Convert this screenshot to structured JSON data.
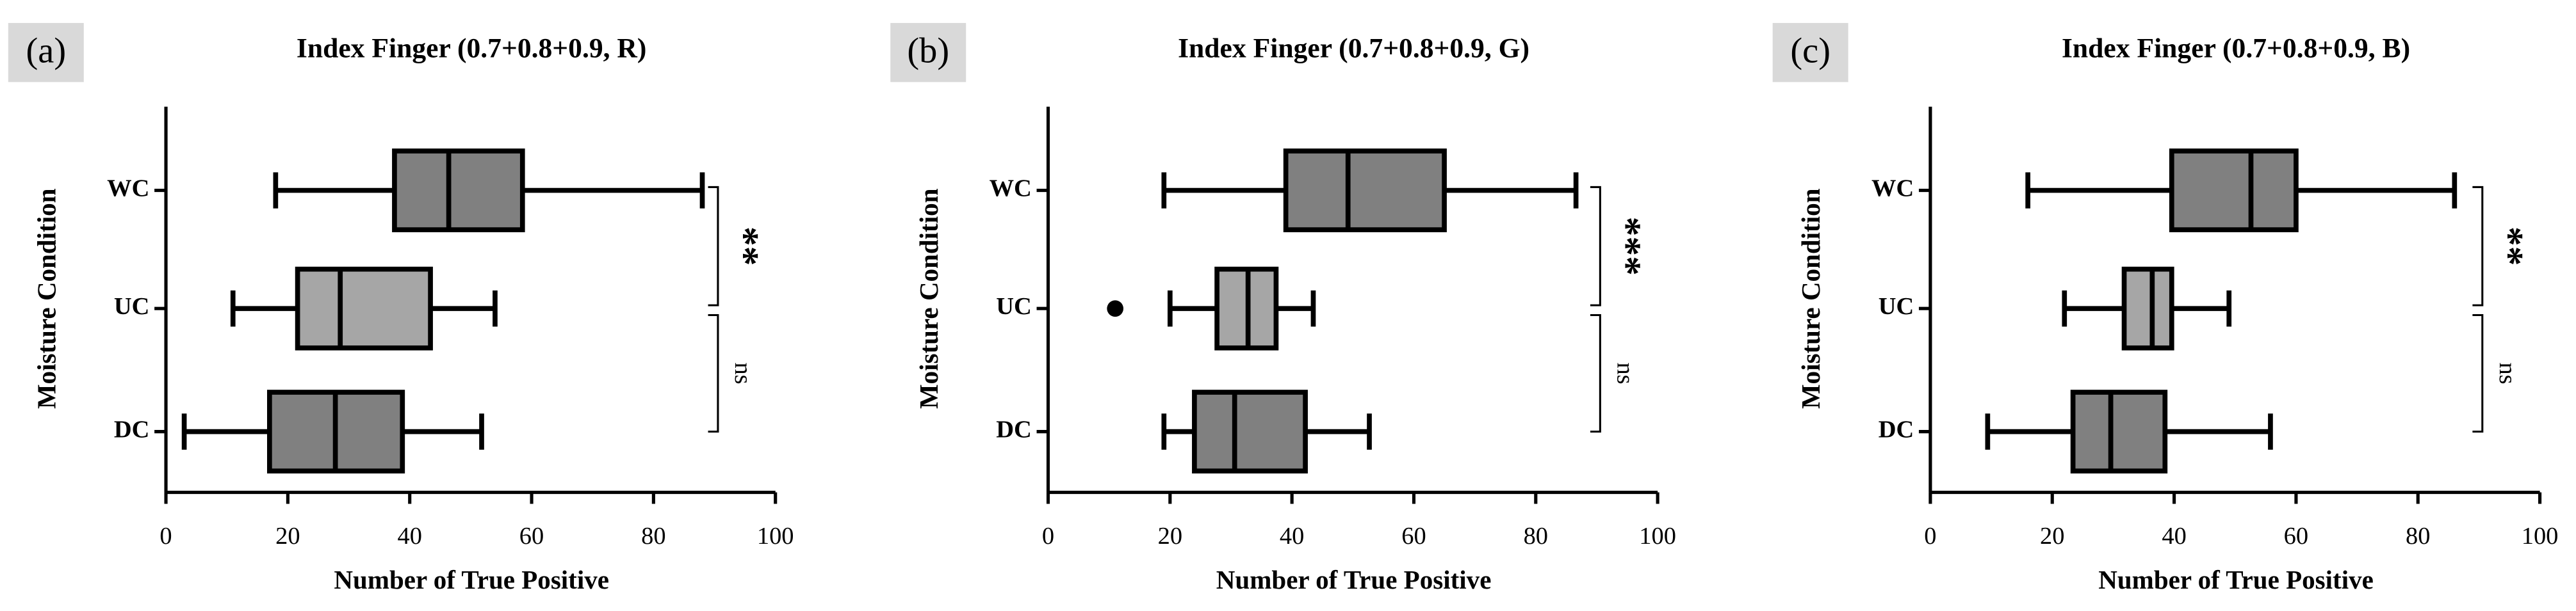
{
  "chart_data": [
    {
      "type": "box",
      "panel_label": "(a)",
      "title": "Index Finger (0.7+0.8+0.9, R)",
      "xlabel": "Number of True  Positive",
      "ylabel": "Moisture Condition",
      "categories": [
        "WC",
        "UC",
        "DC"
      ],
      "min": [
        18,
        11,
        3
      ],
      "q1": [
        37.5,
        21.6,
        17
      ],
      "median": [
        46.4,
        28.6,
        27.8
      ],
      "q3": [
        58.5,
        43.4,
        38.8
      ],
      "max": [
        88,
        54,
        51.8
      ],
      "colors": [
        "#808080",
        "#a6a6a6",
        "#808080"
      ],
      "xlim": [
        0,
        100
      ],
      "xticks": [
        0,
        20,
        40,
        60,
        80,
        100
      ],
      "significance": [
        "**",
        "ns"
      ]
    },
    {
      "type": "box",
      "panel_label": "(b)",
      "title": "Index Finger (0.7+0.8+0.9, G)",
      "xlabel": "Number of True  Positive",
      "ylabel": "Moisture Condition",
      "categories": [
        "WC",
        "UC",
        "DC"
      ],
      "min": [
        19,
        20,
        19
      ],
      "q1": [
        39,
        27.7,
        24
      ],
      "median": [
        49.2,
        32.8,
        30.6
      ],
      "q3": [
        65,
        37.4,
        42.2
      ],
      "max": [
        86.6,
        43.5,
        52.7
      ],
      "outliers": [
        [],
        [
          11
        ],
        []
      ],
      "colors": [
        "#808080",
        "#a6a6a6",
        "#808080"
      ],
      "xlim": [
        0,
        100
      ],
      "xticks": [
        0,
        20,
        40,
        60,
        80,
        100
      ],
      "significance": [
        "***",
        "ns"
      ]
    },
    {
      "type": "box",
      "panel_label": "(c)",
      "title": "Index Finger (0.7+0.8+0.9, B)",
      "xlabel": "Number of True  Positive",
      "ylabel": "Moisture Condition",
      "categories": [
        "WC",
        "UC",
        "DC"
      ],
      "min": [
        16,
        22,
        9.4
      ],
      "q1": [
        39.6,
        31.8,
        23.4
      ],
      "median": [
        52.6,
        36.4,
        29.6
      ],
      "q3": [
        60,
        39.6,
        38.5
      ],
      "max": [
        86,
        49,
        55.8
      ],
      "colors": [
        "#808080",
        "#a6a6a6",
        "#808080"
      ],
      "xlim": [
        0,
        100
      ],
      "xticks": [
        0,
        20,
        40,
        60,
        80,
        100
      ],
      "significance": [
        "**",
        "ns"
      ]
    }
  ]
}
